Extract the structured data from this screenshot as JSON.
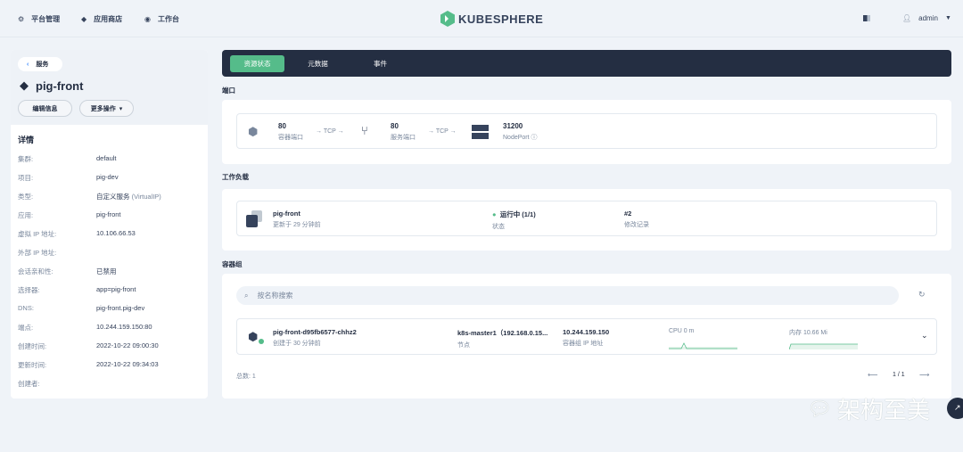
{
  "header": {
    "nav": [
      {
        "label": "平台管理",
        "icon": "gear-icon"
      },
      {
        "label": "应用商店",
        "icon": "store-icon"
      },
      {
        "label": "工作台",
        "icon": "dashboard-icon"
      }
    ],
    "logo": "KUBESPHERE",
    "user": "admin"
  },
  "sidebar": {
    "back_label": "服务",
    "service_name": "pig-front",
    "edit_label": "编辑信息",
    "more_label": "更多操作",
    "details_title": "详情",
    "details": [
      {
        "k": "集群:",
        "v": "default"
      },
      {
        "k": "项目:",
        "v": "pig-dev"
      },
      {
        "k": "类型:",
        "v": "自定义服务",
        "v2": "(VirtualIP)"
      },
      {
        "k": "应用:",
        "v": "pig-front"
      },
      {
        "k": "虚拟 IP 地址:",
        "v": "10.106.66.53"
      },
      {
        "k": "外部 IP 地址:",
        "v": ""
      },
      {
        "k": "会话亲和性:",
        "v": "已禁用"
      },
      {
        "k": "选择器:",
        "v": "app=pig-front"
      },
      {
        "k": "DNS:",
        "v": "pig-front.pig-dev"
      },
      {
        "k": "端点:",
        "v": "10.244.159.150:80"
      },
      {
        "k": "创建时间:",
        "v": "2022-10-22 09:00:30"
      },
      {
        "k": "更新时间:",
        "v": "2022-10-22 09:34:03"
      },
      {
        "k": "创建者:",
        "v": ""
      }
    ]
  },
  "tabs": [
    {
      "label": "资源状态",
      "active": true
    },
    {
      "label": "元数据"
    },
    {
      "label": "事件"
    }
  ],
  "ports": {
    "title": "端口",
    "container_port": "80",
    "container_port_label": "容器端口",
    "proto1": "→ TCP →",
    "service_port": "80",
    "service_port_label": "服务端口",
    "proto2": "→ TCP →",
    "node_port": "31200",
    "node_port_label": "NodePort"
  },
  "workload": {
    "title": "工作负载",
    "name": "pig-front",
    "updated": "更新于 29 分钟前",
    "status": "运行中 (1/1)",
    "status_label": "状态",
    "revision": "#2",
    "revision_label": "修改记录",
    "status_color": "#55bc8a"
  },
  "pods": {
    "title": "容器组",
    "search_placeholder": "按名称搜索",
    "name": "pig-front-d95fb6577-chhz2",
    "created": "创建于 30 分钟前",
    "node": "k8s-master1（192.168.0.15...",
    "node_label": "节点",
    "ip": "10.244.159.150",
    "ip_label": "容器组 IP 地址",
    "cpu": "CPU 0 m",
    "memory": "内存 10.66 Mi",
    "total": "总数: 1",
    "page": "1 / 1"
  },
  "watermark": "架构至美",
  "colors": {
    "accent": "#55bc8a",
    "dark": "#242e42"
  }
}
